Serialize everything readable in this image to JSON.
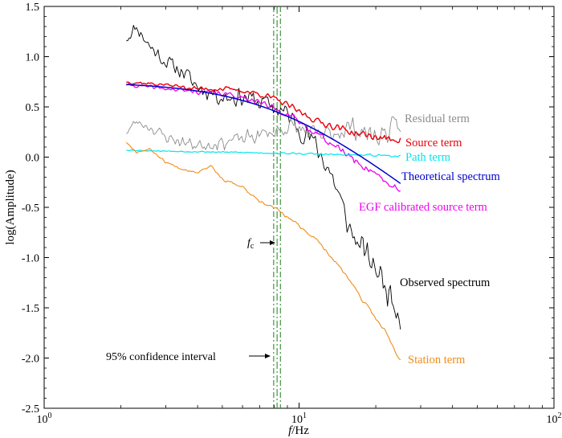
{
  "chart_data": {
    "type": "line",
    "xscale": "log",
    "xlabel_italic": "f",
    "xlabel_rest": "/Hz",
    "ylabel": "log(Amplitude)",
    "xlim": [
      1,
      100
    ],
    "ylim": [
      -2.5,
      1.5
    ],
    "x_ticks": [
      {
        "value": 1,
        "base": "10",
        "exp": "0"
      },
      {
        "value": 10,
        "base": "10",
        "exp": "1"
      },
      {
        "value": 100,
        "base": "10",
        "exp": "2"
      }
    ],
    "y_ticks": [
      {
        "value": 1.5,
        "label": "1.5"
      },
      {
        "value": 1.0,
        "label": "1.0"
      },
      {
        "value": 0.5,
        "label": "0.5"
      },
      {
        "value": 0.0,
        "label": "0.0"
      },
      {
        "value": -0.5,
        "label": "-0.5"
      },
      {
        "value": -1.0,
        "label": "-1.0"
      },
      {
        "value": -1.5,
        "label": "-1.5"
      },
      {
        "value": -2.0,
        "label": "-2.0"
      },
      {
        "value": -2.5,
        "label": "-2.5"
      }
    ],
    "corner_frequency": {
      "label_italic": "f",
      "label_sub": "c",
      "value": 8.2,
      "ci": [
        7.95,
        8.45
      ],
      "ci_label": "95% confidence interval",
      "color": "#2e8b2e"
    },
    "series": [
      {
        "name": "Observed spectrum",
        "color": "#000000",
        "noise": 0.13,
        "seed": 11,
        "width": 0.9,
        "anchors": [
          [
            2.1,
            1.18
          ],
          [
            2.3,
            1.3
          ],
          [
            2.6,
            1.1
          ],
          [
            3.0,
            0.95
          ],
          [
            3.5,
            0.85
          ],
          [
            4.0,
            0.7
          ],
          [
            5.0,
            0.6
          ],
          [
            6.0,
            0.6
          ],
          [
            7.0,
            0.55
          ],
          [
            8.0,
            0.5
          ],
          [
            9.0,
            0.42
          ],
          [
            10.0,
            0.3
          ],
          [
            11.0,
            0.2
          ],
          [
            12.0,
            0.05
          ],
          [
            13.0,
            -0.1
          ],
          [
            14.0,
            -0.3
          ],
          [
            15.0,
            -0.55
          ],
          [
            16.0,
            -0.75
          ],
          [
            18.0,
            -0.95
          ],
          [
            20.0,
            -1.1
          ],
          [
            22.0,
            -1.3
          ],
          [
            24.0,
            -1.45
          ],
          [
            25.0,
            -1.6
          ]
        ]
      },
      {
        "name": "Residual term",
        "color": "#8c8c8c",
        "noise": 0.1,
        "seed": 23,
        "width": 0.9,
        "anchors": [
          [
            2.1,
            0.25
          ],
          [
            2.3,
            0.35
          ],
          [
            2.6,
            0.3
          ],
          [
            3.0,
            0.2
          ],
          [
            3.5,
            0.15
          ],
          [
            4.0,
            0.12
          ],
          [
            5.0,
            0.15
          ],
          [
            6.0,
            0.18
          ],
          [
            7.0,
            0.22
          ],
          [
            8.0,
            0.25
          ],
          [
            9.0,
            0.3
          ],
          [
            10.0,
            0.28
          ],
          [
            12.0,
            0.2
          ],
          [
            14.0,
            0.25
          ],
          [
            16.0,
            0.3
          ],
          [
            18.0,
            0.25
          ],
          [
            20.0,
            0.2
          ],
          [
            22.0,
            0.25
          ],
          [
            25.0,
            0.3
          ]
        ]
      },
      {
        "name": "Source term",
        "color": "#e8000b",
        "noise": 0.035,
        "seed": 37,
        "width": 1.4,
        "anchors": [
          [
            2.1,
            0.75
          ],
          [
            3.0,
            0.72
          ],
          [
            4.0,
            0.68
          ],
          [
            5.0,
            0.68
          ],
          [
            6.0,
            0.66
          ],
          [
            7.0,
            0.63
          ],
          [
            8.0,
            0.58
          ],
          [
            9.0,
            0.52
          ],
          [
            10.0,
            0.45
          ],
          [
            12.0,
            0.35
          ],
          [
            14.0,
            0.3
          ],
          [
            16.0,
            0.25
          ],
          [
            18.0,
            0.22
          ],
          [
            20.0,
            0.2
          ],
          [
            22.0,
            0.18
          ],
          [
            25.0,
            0.18
          ]
        ]
      },
      {
        "name": "EGF calibrated source term",
        "color": "#ee00ee",
        "noise": 0.035,
        "seed": 41,
        "width": 1.3,
        "anchors": [
          [
            2.1,
            0.72
          ],
          [
            3.0,
            0.68
          ],
          [
            4.0,
            0.65
          ],
          [
            5.0,
            0.63
          ],
          [
            6.0,
            0.6
          ],
          [
            7.0,
            0.55
          ],
          [
            8.0,
            0.48
          ],
          [
            9.0,
            0.43
          ],
          [
            10.0,
            0.35
          ],
          [
            12.0,
            0.22
          ],
          [
            14.0,
            0.1
          ],
          [
            16.0,
            0.0
          ],
          [
            18.0,
            -0.1
          ],
          [
            20.0,
            -0.15
          ],
          [
            22.0,
            -0.25
          ],
          [
            25.0,
            -0.35
          ]
        ]
      },
      {
        "name": "Path term",
        "color": "#00e5ee",
        "noise": 0.01,
        "seed": 53,
        "width": 1.2,
        "anchors": [
          [
            2.1,
            0.07
          ],
          [
            3.0,
            0.06
          ],
          [
            5.0,
            0.05
          ],
          [
            8.0,
            0.04
          ],
          [
            12.0,
            0.03
          ],
          [
            16.0,
            0.02
          ],
          [
            20.0,
            0.02
          ],
          [
            25.0,
            0.01
          ]
        ]
      },
      {
        "name": "Theoretical spectrum",
        "color": "#0000cc",
        "model": "brune",
        "omega": 0.75,
        "fc": 8.2,
        "width": 1.5,
        "range": [
          2.1,
          25
        ]
      },
      {
        "name": "Station term",
        "color": "#f08c1a",
        "noise": 0.018,
        "seed": 67,
        "width": 1.1,
        "anchors": [
          [
            2.1,
            0.15
          ],
          [
            2.3,
            0.05
          ],
          [
            2.6,
            0.08
          ],
          [
            3.0,
            -0.05
          ],
          [
            3.5,
            -0.12
          ],
          [
            4.0,
            -0.15
          ],
          [
            4.5,
            -0.08
          ],
          [
            5.0,
            -0.22
          ],
          [
            6.0,
            -0.3
          ],
          [
            7.0,
            -0.45
          ],
          [
            8.0,
            -0.5
          ],
          [
            9.0,
            -0.6
          ],
          [
            10.0,
            -0.68
          ],
          [
            12.0,
            -0.85
          ],
          [
            14.0,
            -1.05
          ],
          [
            16.0,
            -1.25
          ],
          [
            18.0,
            -1.45
          ],
          [
            20.0,
            -1.6
          ],
          [
            22.0,
            -1.75
          ],
          [
            24.0,
            -1.95
          ],
          [
            25.0,
            -2.02
          ]
        ]
      }
    ],
    "labels": {
      "observed": "Observed spectrum",
      "residual": "Residual term",
      "source": "Source term",
      "egf": "EGF calibrated source term",
      "path": "Path term",
      "theoretical": "Theoretical spectrum",
      "station": "Station term"
    }
  }
}
